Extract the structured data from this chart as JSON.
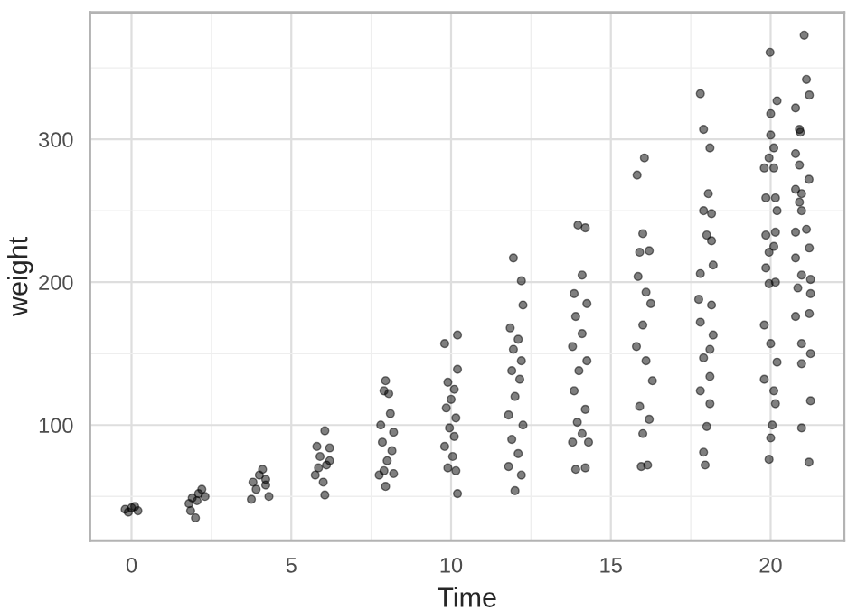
{
  "chart_data": {
    "type": "scatter",
    "xlabel": "Time",
    "ylabel": "weight",
    "xlim": [
      -1.3,
      22.3
    ],
    "ylim": [
      19,
      389
    ],
    "xticks": [
      0,
      5,
      10,
      15,
      20
    ],
    "yticks": [
      100,
      200,
      300
    ],
    "grid": true,
    "marker": "circle",
    "series": [
      {
        "color": "#000000",
        "x": [
          -0.2,
          0,
          0.2,
          0.1,
          -0.1,
          1.9,
          2.1,
          2.2,
          1.8,
          2.0,
          1.85,
          2.3,
          2.05,
          3.8,
          4.0,
          4.2,
          4.1,
          3.9,
          4.3,
          3.75,
          4.2,
          6.05,
          5.8,
          6.2,
          5.9,
          6.1,
          5.75,
          6.0,
          6.05,
          6.2,
          5.85,
          7.95,
          7.9,
          8.05,
          8.1,
          7.8,
          8.2,
          7.85,
          8.15,
          8.0,
          7.9,
          8.2,
          7.95,
          7.75,
          9.8,
          10.2,
          10.2,
          9.9,
          10.1,
          10.0,
          9.85,
          10.15,
          9.95,
          10.1,
          9.8,
          10.05,
          9.9,
          10.15,
          10.2,
          11.95,
          12.2,
          12.25,
          11.85,
          12.1,
          11.95,
          12.2,
          11.9,
          12.15,
          12.0,
          11.8,
          12.25,
          11.9,
          12.1,
          11.8,
          12.2,
          12.0,
          13.97,
          14.2,
          14.1,
          13.85,
          14.25,
          13.9,
          14.1,
          13.8,
          14.25,
          14.0,
          13.85,
          14.2,
          13.95,
          14.1,
          14.3,
          13.8,
          13.9,
          14.2,
          16.05,
          15.82,
          16.0,
          15.9,
          16.2,
          15.85,
          16.1,
          16.25,
          16.0,
          15.8,
          16.1,
          16.3,
          15.9,
          16.2,
          16.0,
          15.95,
          16.15,
          17.8,
          17.9,
          18.1,
          18.05,
          17.9,
          18.15,
          18.0,
          18.15,
          17.8,
          18.2,
          17.75,
          18.15,
          17.8,
          18.2,
          18.1,
          17.9,
          18.1,
          17.8,
          18.1,
          18.0,
          17.9,
          17.95,
          19.98,
          20.2,
          20.0,
          20.0,
          20.1,
          19.95,
          19.8,
          20.1,
          19.85,
          20.15,
          20.2,
          19.85,
          20.15,
          19.95,
          20.1,
          19.85,
          19.95,
          20.15,
          19.8,
          20.0,
          20.2,
          19.8,
          20.1,
          20.15,
          20.05,
          20.0,
          19.95,
          21.05,
          21.12,
          21.21,
          20.78,
          20.9,
          20.93,
          20.78,
          20.9,
          21.2,
          20.78,
          20.97,
          20.9,
          20.97,
          21.12,
          20.78,
          21.21,
          20.78,
          20.97,
          21.25,
          20.85,
          21.25,
          20.78,
          21.21,
          20.97,
          21.25,
          20.97,
          21.25,
          20.97,
          21.2
        ],
        "values": [
          41,
          42,
          40,
          43,
          39,
          49,
          52,
          55,
          45,
          35,
          40,
          50,
          47,
          60,
          65,
          58,
          69,
          55,
          50,
          48,
          62,
          96,
          85,
          84,
          78,
          72,
          65,
          60,
          51,
          75,
          70,
          131,
          124,
          122,
          108,
          100,
          95,
          88,
          82,
          75,
          68,
          66,
          57,
          65,
          157,
          163,
          139,
          130,
          125,
          118,
          112,
          105,
          98,
          92,
          85,
          78,
          70,
          68,
          52,
          217,
          201,
          184,
          168,
          160,
          153,
          145,
          138,
          132,
          120,
          107,
          100,
          90,
          80,
          71,
          65,
          54,
          240,
          238,
          205,
          192,
          185,
          176,
          164,
          155,
          145,
          138,
          124,
          111,
          102,
          94,
          88,
          88,
          69,
          70,
          287,
          275,
          234,
          221,
          222,
          204,
          193,
          185,
          170,
          155,
          145,
          131,
          113,
          104,
          94,
          71,
          72,
          332,
          307,
          294,
          262,
          250,
          248,
          233,
          229,
          206,
          212,
          188,
          184,
          172,
          163,
          153,
          147,
          134,
          124,
          115,
          99,
          81,
          72,
          361,
          327,
          318,
          303,
          294,
          287,
          280,
          280,
          259,
          259,
          250,
          233,
          235,
          221,
          225,
          210,
          199,
          200,
          170,
          157,
          144,
          132,
          124,
          115,
          100,
          91,
          76,
          373,
          342,
          331,
          322,
          307,
          305,
          290,
          282,
          272,
          265,
          262,
          256,
          250,
          237,
          235,
          224,
          217,
          205,
          202,
          196,
          192,
          176,
          178,
          157,
          150,
          143,
          117,
          98,
          74
        ]
      }
    ]
  }
}
